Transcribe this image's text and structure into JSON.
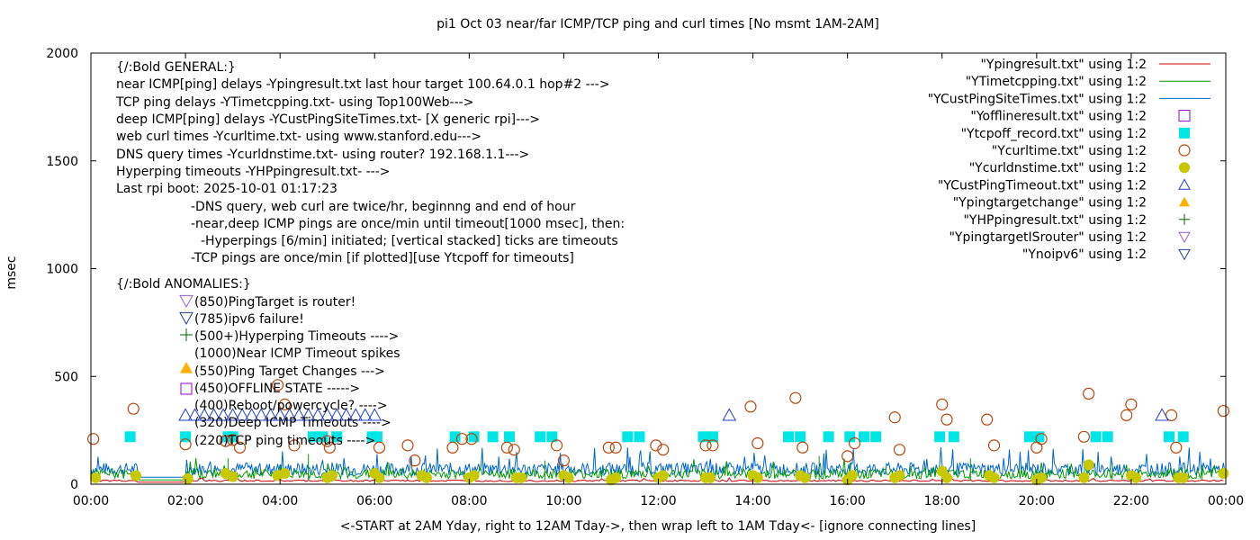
{
  "chart_data": {
    "type": "scatter",
    "title": "pi1 Oct 03  near/far ICMP/TCP ping and curl times [No msmt 1AM-2AM]",
    "xlabel": "<-START at 2AM Yday, right to 12AM Tday->, then wrap left to 1AM Tday<- [ignore connecting lines]",
    "ylabel": "msec",
    "xlim": [
      0,
      24
    ],
    "ylim": [
      0,
      2000
    ],
    "grid": false,
    "legend_position": "top-right",
    "x_tick_labels": [
      "00:00",
      "02:00",
      "04:00",
      "06:00",
      "08:00",
      "10:00",
      "12:00",
      "14:00",
      "16:00",
      "18:00",
      "20:00",
      "22:00",
      "00:00"
    ],
    "y_ticks": [
      0,
      500,
      1000,
      1500,
      2000
    ],
    "annotations": [
      "{/:Bold GENERAL:}",
      "near ICMP[ping] delays -Ypingresult.txt last hour target 100.64.0.1 hop#2 --->",
      "TCP ping delays -YTimetcpping.txt- using Top100Web--->",
      "deep ICMP[ping] delays -YCustPingSiteTimes.txt- [X generic rpi]--->",
      "web curl times -Ycurltime.txt- using www.stanford.edu--->",
      "DNS query times -Ycurldnstime.txt- using router? 192.168.1.1--->",
      "Hyperping timeouts -YHPpingresult.txt- --->",
      "Last rpi boot: 2025-10-01 01:17:23",
      "-DNS query, web curl are twice/hr, beginnng and end of hour",
      "-near,deep ICMP pings are once/min until timeout[1000 msec], then:",
      "-Hyperpings [6/min] initiated; [vertical stacked] ticks are timeouts",
      "-TCP pings are once/min [if plotted][use Ytcpoff for timeouts]",
      "{/:Bold ANOMALIES:}",
      "(850)PingTarget is router!",
      "(785)ipv6 failure!",
      "(500+)Hyperping Timeouts ---->",
      "(1000)Near ICMP Timeout spikes",
      "(550)Ping Target Changes --->",
      "(450)OFFLINE STATE ----->",
      "(400)Reboot/powercycle? ---->",
      "(320)Deep ICMP Timeouts ---->",
      "(220)TCP ping timeouts ---->"
    ],
    "series": [
      {
        "name": "\"Ypingresult.txt\" using 1:2",
        "marker": "line",
        "color": "#cc0000"
      },
      {
        "name": "\"YTimetcpping.txt\" using 1:2",
        "marker": "line",
        "color": "#009900"
      },
      {
        "name": "\"YCustPingSiteTimes.txt\" using 1:2",
        "marker": "line",
        "color": "#0066cc"
      },
      {
        "name": "\"Yofflineresult.txt\" using 1:2",
        "marker": "open-square",
        "color": "#9400d3",
        "points": []
      },
      {
        "name": "\"Ytcpoff_record.txt\" using 1:2",
        "marker": "filled-square",
        "color": "#00e5e5",
        "points": [
          [
            0.83,
            220
          ],
          [
            2.0,
            220
          ],
          [
            2.9,
            220
          ],
          [
            3.0,
            220
          ],
          [
            4.7,
            220
          ],
          [
            4.9,
            220
          ],
          [
            5.2,
            220
          ],
          [
            5.95,
            220
          ],
          [
            6.05,
            220
          ],
          [
            7.7,
            220
          ],
          [
            8.1,
            220
          ],
          [
            8.5,
            220
          ],
          [
            8.85,
            220
          ],
          [
            9.5,
            220
          ],
          [
            9.75,
            220
          ],
          [
            11.35,
            220
          ],
          [
            11.6,
            220
          ],
          [
            12.95,
            220
          ],
          [
            13.15,
            220
          ],
          [
            14.75,
            220
          ],
          [
            15.0,
            220
          ],
          [
            15.6,
            220
          ],
          [
            16.05,
            220
          ],
          [
            16.35,
            220
          ],
          [
            16.6,
            220
          ],
          [
            17.95,
            220
          ],
          [
            18.25,
            220
          ],
          [
            19.85,
            220
          ],
          [
            20.05,
            220
          ],
          [
            21.25,
            220
          ],
          [
            21.5,
            220
          ],
          [
            22.8,
            220
          ],
          [
            23.1,
            220
          ]
        ]
      },
      {
        "name": "\"Ycurltime.txt\" using 1:2",
        "marker": "open-circle",
        "color": "#b8460b",
        "points": [
          [
            0.05,
            210
          ],
          [
            0.9,
            350
          ],
          [
            2.0,
            185
          ],
          [
            2.85,
            200
          ],
          [
            3.0,
            205
          ],
          [
            3.15,
            170
          ],
          [
            3.95,
            460
          ],
          [
            4.1,
            370
          ],
          [
            4.3,
            180
          ],
          [
            5.0,
            200
          ],
          [
            5.05,
            170
          ],
          [
            6.1,
            170
          ],
          [
            6.7,
            180
          ],
          [
            6.85,
            110
          ],
          [
            7.65,
            170
          ],
          [
            7.85,
            210
          ],
          [
            8.05,
            210
          ],
          [
            8.8,
            170
          ],
          [
            8.95,
            160
          ],
          [
            9.85,
            180
          ],
          [
            10.0,
            110
          ],
          [
            10.95,
            170
          ],
          [
            11.1,
            170
          ],
          [
            11.95,
            180
          ],
          [
            12.1,
            160
          ],
          [
            13.0,
            180
          ],
          [
            13.15,
            180
          ],
          [
            13.95,
            360
          ],
          [
            14.1,
            190
          ],
          [
            14.9,
            400
          ],
          [
            15.05,
            170
          ],
          [
            16.0,
            130
          ],
          [
            16.15,
            190
          ],
          [
            17.0,
            310
          ],
          [
            17.1,
            160
          ],
          [
            18.0,
            370
          ],
          [
            18.1,
            300
          ],
          [
            18.95,
            300
          ],
          [
            19.1,
            180
          ],
          [
            20.0,
            170
          ],
          [
            20.1,
            210
          ],
          [
            21.0,
            220
          ],
          [
            21.1,
            420
          ],
          [
            21.9,
            320
          ],
          [
            22.0,
            370
          ],
          [
            22.85,
            320
          ],
          [
            22.95,
            170
          ],
          [
            23.95,
            340
          ]
        ]
      },
      {
        "name": "\"Ycurldnstime.txt\" using 1:2",
        "marker": "filled-circle",
        "color": "#c8c800",
        "points": [
          [
            0.1,
            30
          ],
          [
            0.95,
            40
          ],
          [
            2.05,
            25
          ],
          [
            2.85,
            50
          ],
          [
            3.0,
            35
          ],
          [
            3.95,
            40
          ],
          [
            4.1,
            50
          ],
          [
            5.0,
            30
          ],
          [
            5.1,
            40
          ],
          [
            6.0,
            50
          ],
          [
            6.1,
            30
          ],
          [
            7.0,
            40
          ],
          [
            7.1,
            30
          ],
          [
            8.0,
            30
          ],
          [
            8.1,
            40
          ],
          [
            9.0,
            30
          ],
          [
            9.1,
            30
          ],
          [
            10.0,
            40
          ],
          [
            10.1,
            30
          ],
          [
            11.0,
            20
          ],
          [
            11.1,
            30
          ],
          [
            12.0,
            30
          ],
          [
            12.1,
            40
          ],
          [
            13.0,
            30
          ],
          [
            13.1,
            30
          ],
          [
            14.0,
            40
          ],
          [
            14.1,
            30
          ],
          [
            15.0,
            40
          ],
          [
            15.1,
            30
          ],
          [
            16.0,
            20
          ],
          [
            16.1,
            40
          ],
          [
            17.0,
            30
          ],
          [
            17.1,
            40
          ],
          [
            18.0,
            60
          ],
          [
            18.1,
            30
          ],
          [
            19.0,
            40
          ],
          [
            19.1,
            30
          ],
          [
            20.0,
            20
          ],
          [
            20.1,
            30
          ],
          [
            21.0,
            30
          ],
          [
            21.1,
            90
          ],
          [
            22.0,
            40
          ],
          [
            22.1,
            30
          ],
          [
            23.0,
            30
          ],
          [
            23.1,
            30
          ],
          [
            23.95,
            50
          ]
        ]
      },
      {
        "name": "\"YCustPingTimeout.txt\" using 1:2",
        "marker": "open-triangle-up",
        "color": "#1f3fcc",
        "points": [
          [
            2.0,
            320
          ],
          [
            2.2,
            320
          ],
          [
            2.4,
            320
          ],
          [
            2.6,
            320
          ],
          [
            2.8,
            320
          ],
          [
            3.0,
            320
          ],
          [
            3.2,
            320
          ],
          [
            3.4,
            320
          ],
          [
            3.6,
            320
          ],
          [
            3.8,
            320
          ],
          [
            4.0,
            320
          ],
          [
            4.2,
            320
          ],
          [
            4.4,
            320
          ],
          [
            4.6,
            320
          ],
          [
            4.8,
            320
          ],
          [
            5.0,
            320
          ],
          [
            5.2,
            320
          ],
          [
            5.4,
            320
          ],
          [
            5.6,
            320
          ],
          [
            5.8,
            320
          ],
          [
            6.0,
            320
          ],
          [
            13.5,
            320
          ],
          [
            22.65,
            320
          ]
        ]
      },
      {
        "name": "\"Ypingtargetchange\" using 1:2",
        "marker": "filled-triangle-up",
        "color": "#ffb000",
        "points": []
      },
      {
        "name": "\"YHPpingresult.txt\" using 1:2",
        "marker": "plus",
        "color": "#006400",
        "points": []
      },
      {
        "name": "\"YpingtargetISrouter\" using 1:2",
        "marker": "open-triangle-down",
        "color": "#9b5bd6",
        "points": []
      },
      {
        "name": "\"Ynoipv6\" using 1:2",
        "marker": "open-triangle-down",
        "color": "#1f3f8c",
        "points": []
      }
    ]
  }
}
